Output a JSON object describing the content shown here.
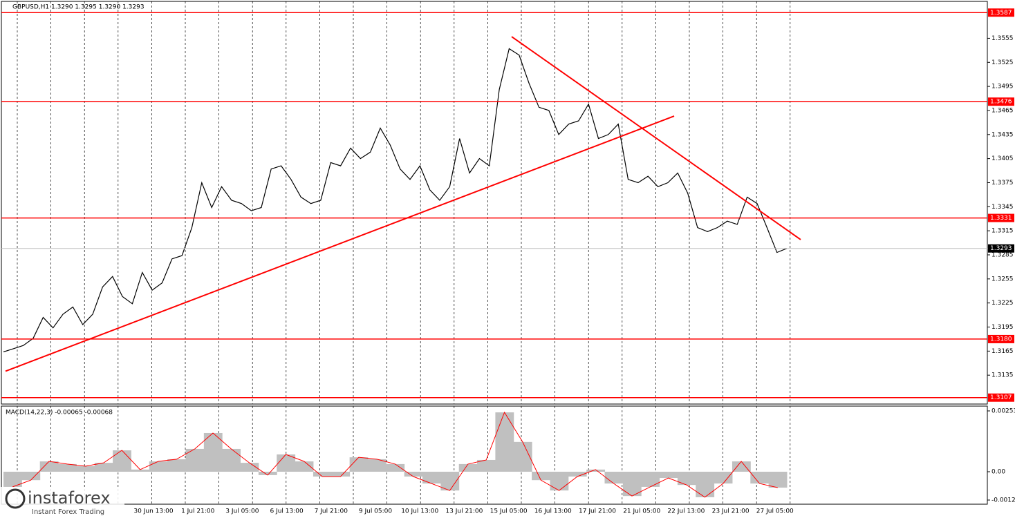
{
  "chart_data": [
    {
      "type": "line",
      "title": "GBPUSD,H1  1.3290 1.3295 1.3290 1.3293",
      "color": "#000000",
      "values": [
        1.3164,
        1.3168,
        1.3172,
        1.3181,
        1.3207,
        1.3194,
        1.3211,
        1.322,
        1.3198,
        1.3211,
        1.3245,
        1.3258,
        1.3233,
        1.3224,
        1.3263,
        1.3241,
        1.325,
        1.328,
        1.3284,
        1.3319,
        1.3375,
        1.3344,
        1.337,
        1.3353,
        1.3349,
        1.334,
        1.3344,
        1.3392,
        1.3396,
        1.3379,
        1.3357,
        1.3349,
        1.3353,
        1.34,
        1.3396,
        1.3418,
        1.3405,
        1.3413,
        1.3443,
        1.3422,
        1.3392,
        1.3379,
        1.3396,
        1.3366,
        1.3353,
        1.337,
        1.343,
        1.3387,
        1.3405,
        1.3396,
        1.3491,
        1.3542,
        1.3534,
        1.3499,
        1.3469,
        1.3465,
        1.3435,
        1.3448,
        1.3452,
        1.3473,
        1.343,
        1.3435,
        1.3448,
        1.3379,
        1.3375,
        1.3383,
        1.337,
        1.3375,
        1.3387,
        1.3362,
        1.3319,
        1.3314,
        1.3319,
        1.3327,
        1.3323,
        1.3357,
        1.3349,
        1.3319,
        1.3288,
        1.3293
      ],
      "ylim": [
        1.3099,
        1.3601
      ],
      "yticks": [
        1.3555,
        1.3525,
        1.3495,
        1.3465,
        1.3435,
        1.3405,
        1.3375,
        1.3345,
        1.3315,
        1.3285,
        1.3255,
        1.3225,
        1.3195,
        1.3165,
        1.3135
      ],
      "levels": [
        1.3587,
        1.3476,
        1.3331,
        {
          "value": 1.318,
          "label": "1.3180"
        },
        1.3107
      ],
      "level_color": "#ff0000",
      "last_price": 1.3293,
      "trendlines": [
        [
          1.314,
          1.3458
        ],
        [
          1.3557,
          1.3304
        ]
      ],
      "xticks": [
        "30 Jun 13:00",
        "1 Jul 21:00",
        "3 Jul 05:00",
        "6 Jul 13:00",
        "7 Jul 21:00",
        "9 Jul 05:00",
        "10 Jul 13:00",
        "13 Jul 21:00",
        "15 Jul 05:00",
        "16 Jul 13:00",
        "17 Jul 21:00",
        "21 Jul 05:00",
        "22 Jul 13:00",
        "23 Jul 21:00",
        "27 Jul 05:00"
      ]
    },
    {
      "type": "bar",
      "title": "MACD(14,22,3) -0.00065 -0.00068",
      "color": "#c0c0c0",
      "signal_color": "#ff0000",
      "values": [
        -0.00063,
        -0.00035,
        0.00043,
        0.00032,
        0.00023,
        0.00037,
        0.00089,
        9e-05,
        0.00043,
        0.00052,
        0.00095,
        0.00161,
        0.00095,
        0.00037,
        -0.00014,
        0.00072,
        0.00043,
        -0.0002,
        -0.0002,
        0.0006,
        0.00052,
        0.00032,
        -0.0002,
        -0.00049,
        -0.00078,
        0.00032,
        0.00049,
        0.00247,
        0.00124,
        -0.00035,
        -0.00078,
        -0.0002,
        9e-05,
        -0.00049,
        -0.00101,
        -0.00063,
        -0.00026,
        -0.00055,
        -0.00106,
        -0.00049,
        0.00043,
        -0.00049,
        -0.00066
      ],
      "ylim": [
        -0.00135,
        0.00273
      ],
      "yticks": [
        0.00253,
        {
          "value": 0,
          "label": "0.00"
        },
        -0.00122
      ]
    }
  ],
  "watermark": {
    "brand": "instaforex",
    "tagline": "Instant Forex Trading"
  }
}
